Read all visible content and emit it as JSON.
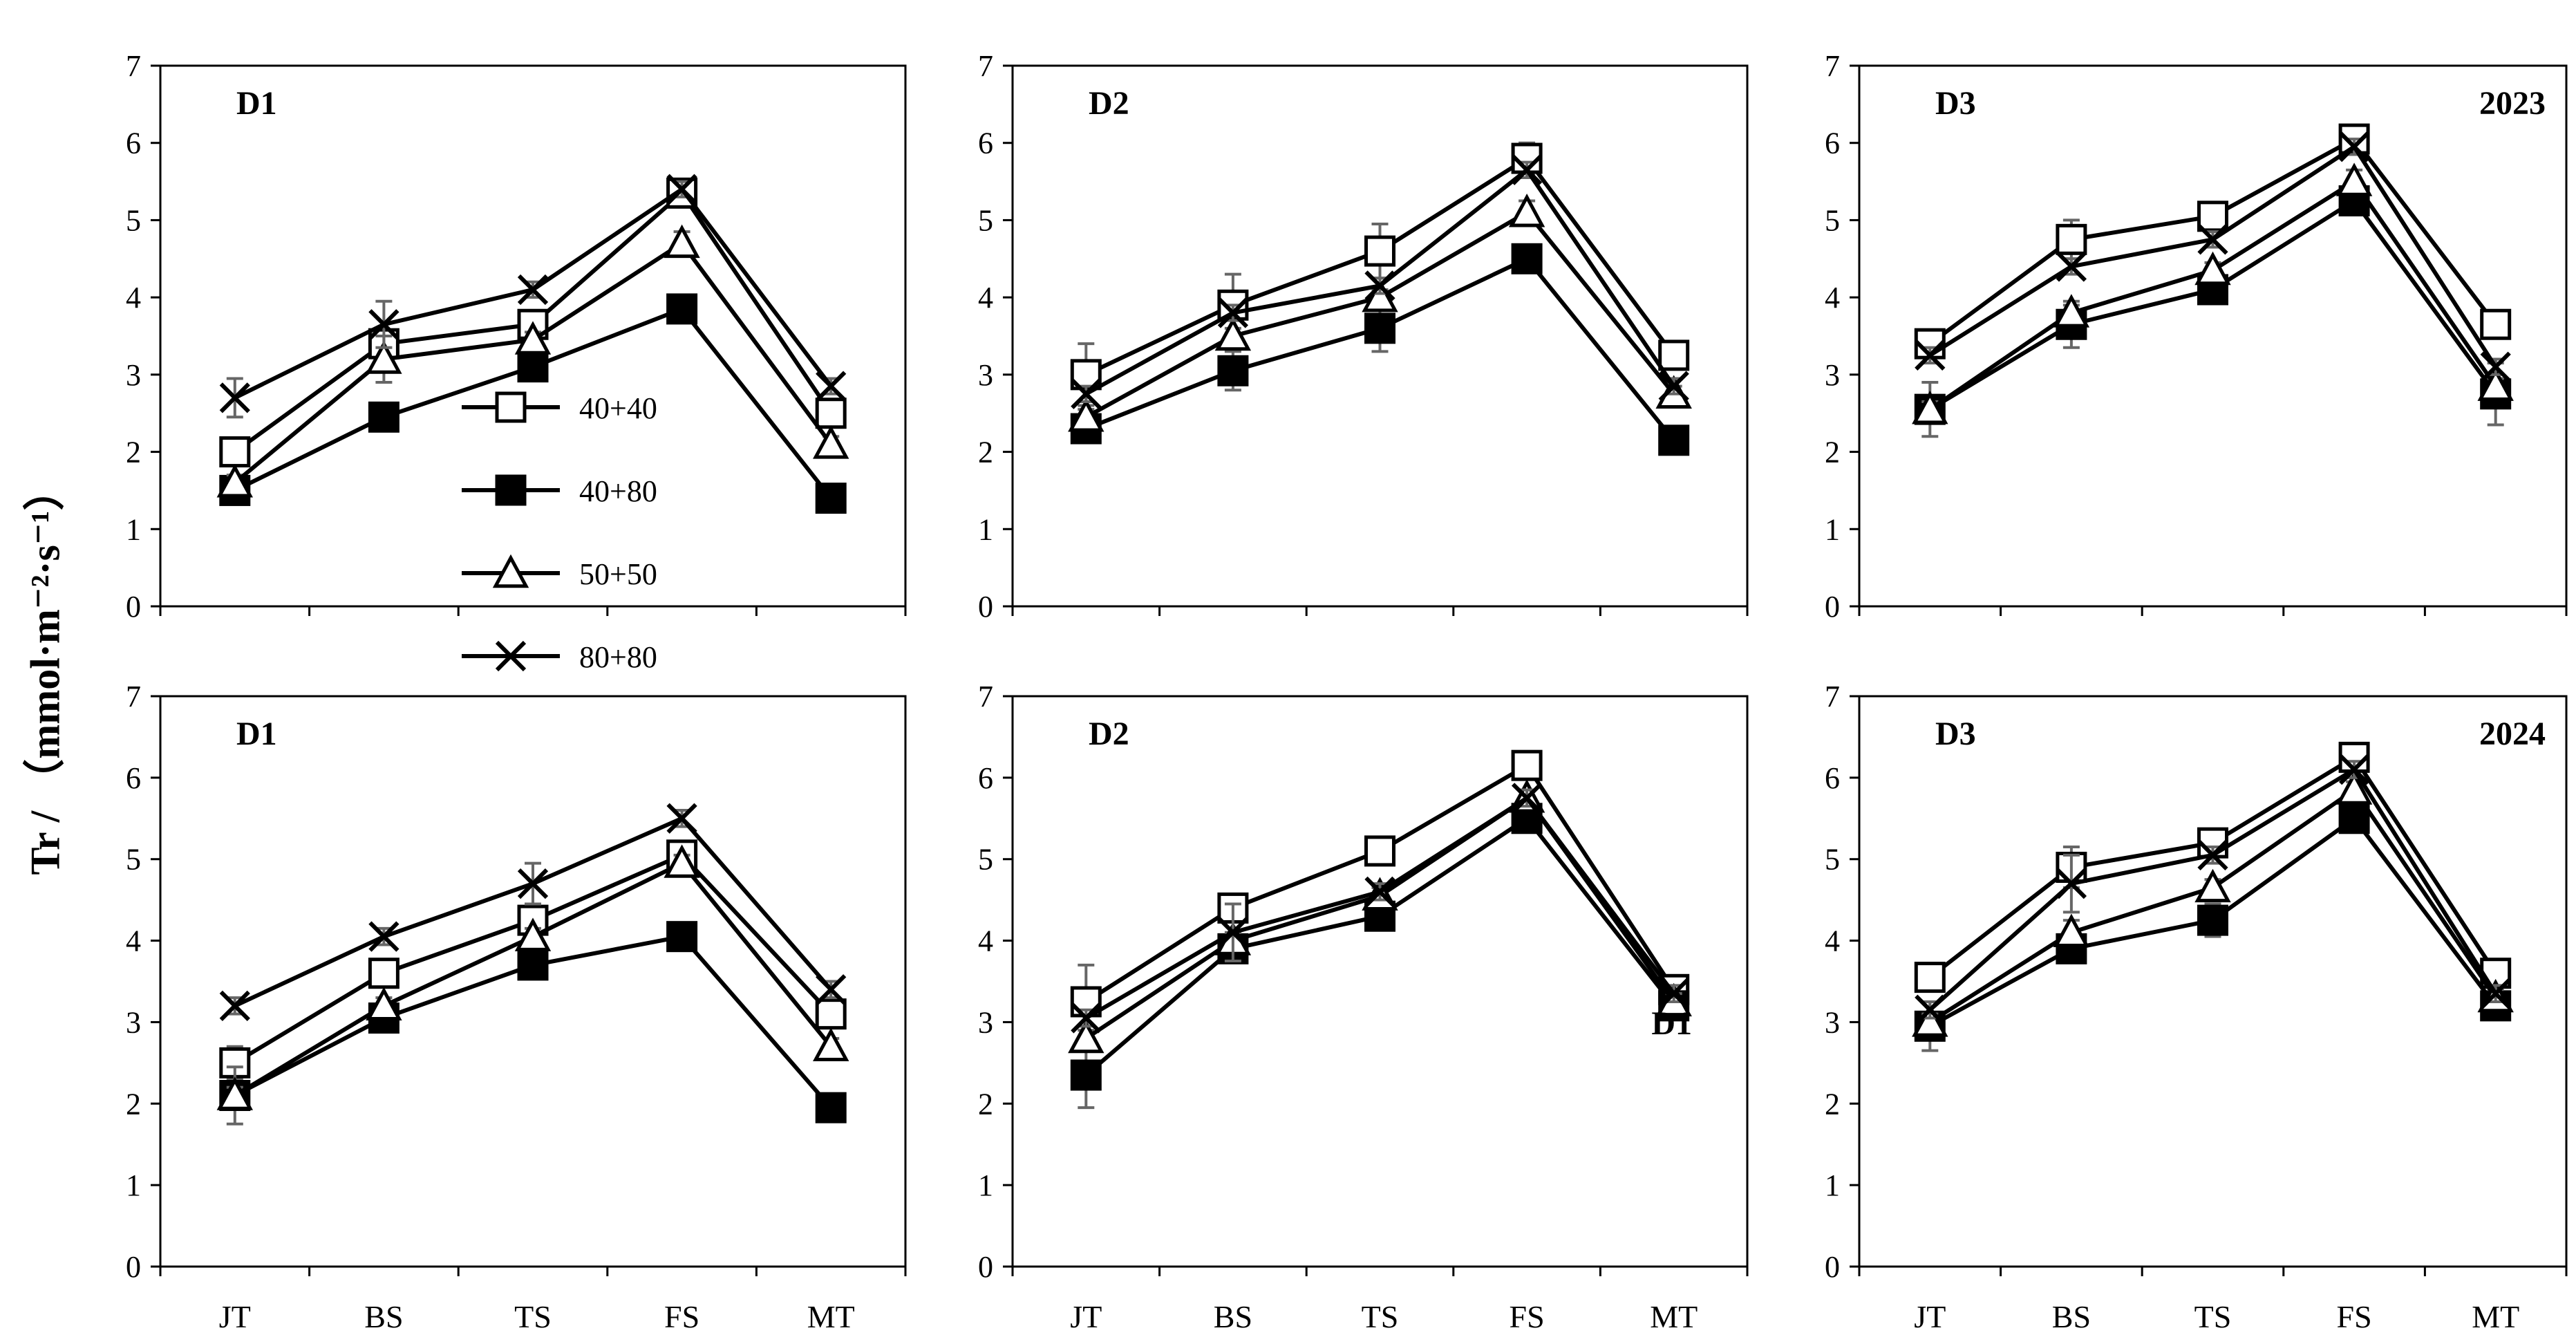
{
  "ylabel": "Tr / （mmol·m⁻²·s⁻¹）",
  "colors": {
    "line": "#000000",
    "errorbar": "#666666",
    "background": "#ffffff"
  },
  "legend": {
    "location": "panel D1 2023, center-left",
    "entries": [
      {
        "label": "40+40",
        "marker": "open-square"
      },
      {
        "label": "40+80",
        "marker": "filled-square"
      },
      {
        "label": "50+50",
        "marker": "open-triangle"
      },
      {
        "label": "80+80",
        "marker": "x-cross"
      }
    ]
  },
  "chart_data": [
    {
      "type": "line",
      "title": "D1",
      "year_label": "",
      "categories": [
        "JT",
        "BS",
        "TS",
        "FS",
        "MT"
      ],
      "ylim": [
        0,
        7
      ],
      "yticks": [
        0,
        1,
        2,
        3,
        4,
        5,
        6,
        7
      ],
      "xlabel": "",
      "ylabel": "Tr / （mmol·m⁻²·s⁻¹）",
      "show_x_tick_labels": false,
      "series": [
        {
          "name": "40+40",
          "marker": "open-square",
          "values": [
            2.0,
            3.4,
            3.65,
            5.35,
            2.5
          ],
          "errors": [
            0.15,
            0.15,
            0.1,
            0.1,
            0.1
          ]
        },
        {
          "name": "40+80",
          "marker": "filled-square",
          "values": [
            1.5,
            2.45,
            3.1,
            3.85,
            1.4
          ],
          "errors": [
            0.1,
            0.1,
            0.1,
            0.1,
            0.1
          ]
        },
        {
          "name": "50+50",
          "marker": "open-triangle",
          "values": [
            1.6,
            3.2,
            3.45,
            4.7,
            2.1
          ],
          "errors": [
            0.1,
            0.3,
            0.1,
            0.15,
            0.1
          ]
        },
        {
          "name": "80+80",
          "marker": "x-cross",
          "values": [
            2.7,
            3.65,
            4.1,
            5.4,
            2.85
          ],
          "errors": [
            0.25,
            0.3,
            0.1,
            0.1,
            0.1
          ]
        }
      ]
    },
    {
      "type": "line",
      "title": "D2",
      "year_label": "",
      "categories": [
        "JT",
        "BS",
        "TS",
        "FS",
        "MT"
      ],
      "ylim": [
        0,
        7
      ],
      "yticks": [
        0,
        1,
        2,
        3,
        4,
        5,
        6,
        7
      ],
      "xlabel": "",
      "ylabel": "Tr / （mmol·m⁻²·s⁻¹）",
      "show_x_tick_labels": false,
      "series": [
        {
          "name": "40+40",
          "marker": "open-square",
          "values": [
            3.0,
            3.9,
            4.6,
            5.8,
            3.25
          ],
          "errors": [
            0.4,
            0.4,
            0.35,
            0.2,
            0.1
          ]
        },
        {
          "name": "40+80",
          "marker": "filled-square",
          "values": [
            2.3,
            3.05,
            3.6,
            4.5,
            2.15
          ],
          "errors": [
            0.1,
            0.25,
            0.3,
            0.1,
            0.1
          ]
        },
        {
          "name": "50+50",
          "marker": "open-triangle",
          "values": [
            2.45,
            3.5,
            4.0,
            5.1,
            2.75
          ],
          "errors": [
            0.1,
            0.1,
            0.1,
            0.15,
            0.1
          ]
        },
        {
          "name": "80+80",
          "marker": "x-cross",
          "values": [
            2.75,
            3.8,
            4.15,
            5.65,
            2.85
          ],
          "errors": [
            0.1,
            0.1,
            0.1,
            0.1,
            0.1
          ]
        }
      ]
    },
    {
      "type": "line",
      "title": "D3",
      "year_label": "2023",
      "categories": [
        "JT",
        "BS",
        "TS",
        "FS",
        "MT"
      ],
      "ylim": [
        0,
        7
      ],
      "yticks": [
        0,
        1,
        2,
        3,
        4,
        5,
        6,
        7
      ],
      "xlabel": "",
      "ylabel": "Tr / （mmol·m⁻²·s⁻¹）",
      "show_x_tick_labels": false,
      "series": [
        {
          "name": "40+40",
          "marker": "open-square",
          "values": [
            3.4,
            4.75,
            5.05,
            6.05,
            3.65
          ],
          "errors": [
            0.15,
            0.25,
            0.1,
            0.1,
            0.15
          ]
        },
        {
          "name": "40+80",
          "marker": "filled-square",
          "values": [
            2.55,
            3.65,
            4.1,
            5.25,
            2.75
          ],
          "errors": [
            0.35,
            0.3,
            0.15,
            0.1,
            0.4
          ]
        },
        {
          "name": "50+50",
          "marker": "open-triangle",
          "values": [
            2.55,
            3.8,
            4.35,
            5.5,
            2.85
          ],
          "errors": [
            0.1,
            0.1,
            0.1,
            0.15,
            0.1
          ]
        },
        {
          "name": "80+80",
          "marker": "x-cross",
          "values": [
            3.25,
            4.4,
            4.75,
            5.95,
            3.1
          ],
          "errors": [
            0.1,
            0.1,
            0.1,
            0.1,
            0.1
          ]
        }
      ]
    },
    {
      "type": "line",
      "title": "D1",
      "year_label": "",
      "categories": [
        "JT",
        "BS",
        "TS",
        "FS",
        "MT"
      ],
      "ylim": [
        0,
        7
      ],
      "yticks": [
        0,
        1,
        2,
        3,
        4,
        5,
        6,
        7
      ],
      "xlabel": "",
      "ylabel": "Tr / （mmol·m⁻²·s⁻¹）",
      "show_x_tick_labels": true,
      "series": [
        {
          "name": "40+40",
          "marker": "open-square",
          "values": [
            2.5,
            3.6,
            4.25,
            5.05,
            3.1
          ],
          "errors": [
            0.2,
            0.1,
            0.2,
            0.1,
            0.1
          ]
        },
        {
          "name": "40+80",
          "marker": "filled-square",
          "values": [
            2.1,
            3.05,
            3.7,
            4.05,
            1.95
          ],
          "errors": [
            0.35,
            0.1,
            0.1,
            0.1,
            0.1
          ]
        },
        {
          "name": "50+50",
          "marker": "open-triangle",
          "values": [
            2.1,
            3.2,
            4.05,
            4.95,
            2.7
          ],
          "errors": [
            0.1,
            0.1,
            0.1,
            0.1,
            0.1
          ]
        },
        {
          "name": "80+80",
          "marker": "x-cross",
          "values": [
            3.2,
            4.05,
            4.7,
            5.5,
            3.4
          ],
          "errors": [
            0.1,
            0.1,
            0.25,
            0.1,
            0.1
          ]
        }
      ]
    },
    {
      "type": "line",
      "title": "D2",
      "year_label": "",
      "annotation": "D1",
      "categories": [
        "JT",
        "BS",
        "TS",
        "FS",
        "MT"
      ],
      "ylim": [
        0,
        7
      ],
      "yticks": [
        0,
        1,
        2,
        3,
        4,
        5,
        6,
        7
      ],
      "xlabel": "",
      "ylabel": "Tr / （mmol·m⁻²·s⁻¹）",
      "show_x_tick_labels": true,
      "series": [
        {
          "name": "40+40",
          "marker": "open-square",
          "values": [
            3.25,
            4.4,
            5.1,
            6.15,
            3.4
          ],
          "errors": [
            0.45,
            0.1,
            0.1,
            0.1,
            0.1
          ]
        },
        {
          "name": "40+80",
          "marker": "filled-square",
          "values": [
            2.35,
            3.9,
            4.3,
            5.5,
            3.2
          ],
          "errors": [
            0.4,
            0.1,
            0.1,
            0.1,
            0.1
          ]
        },
        {
          "name": "50+50",
          "marker": "open-triangle",
          "values": [
            2.8,
            4.0,
            4.55,
            5.75,
            3.25
          ],
          "errors": [
            0.1,
            0.1,
            0.1,
            0.1,
            0.1
          ]
        },
        {
          "name": "80+80",
          "marker": "x-cross",
          "values": [
            3.05,
            4.1,
            4.6,
            5.75,
            3.35
          ],
          "errors": [
            0.1,
            0.35,
            0.1,
            0.1,
            0.1
          ]
        }
      ]
    },
    {
      "type": "line",
      "title": "D3",
      "year_label": "2024",
      "categories": [
        "JT",
        "BS",
        "TS",
        "FS",
        "MT"
      ],
      "ylim": [
        0,
        7
      ],
      "yticks": [
        0,
        1,
        2,
        3,
        4,
        5,
        6,
        7
      ],
      "xlabel": "",
      "ylabel": "Tr / （mmol·m⁻²·s⁻¹）",
      "show_x_tick_labels": true,
      "series": [
        {
          "name": "40+40",
          "marker": "open-square",
          "values": [
            3.55,
            4.9,
            5.2,
            6.25,
            3.6
          ],
          "errors": [
            0.1,
            0.25,
            0.1,
            0.1,
            0.1
          ]
        },
        {
          "name": "40+80",
          "marker": "filled-square",
          "values": [
            2.95,
            3.9,
            4.25,
            5.5,
            3.2
          ],
          "errors": [
            0.3,
            0.1,
            0.2,
            0.15,
            0.1
          ]
        },
        {
          "name": "50+50",
          "marker": "open-triangle",
          "values": [
            3.0,
            4.1,
            4.65,
            5.85,
            3.3
          ],
          "errors": [
            0.1,
            0.15,
            0.1,
            0.1,
            0.1
          ]
        },
        {
          "name": "80+80",
          "marker": "x-cross",
          "values": [
            3.15,
            4.7,
            5.05,
            6.1,
            3.35
          ],
          "errors": [
            0.1,
            0.35,
            0.1,
            0.1,
            0.1
          ]
        }
      ]
    }
  ]
}
